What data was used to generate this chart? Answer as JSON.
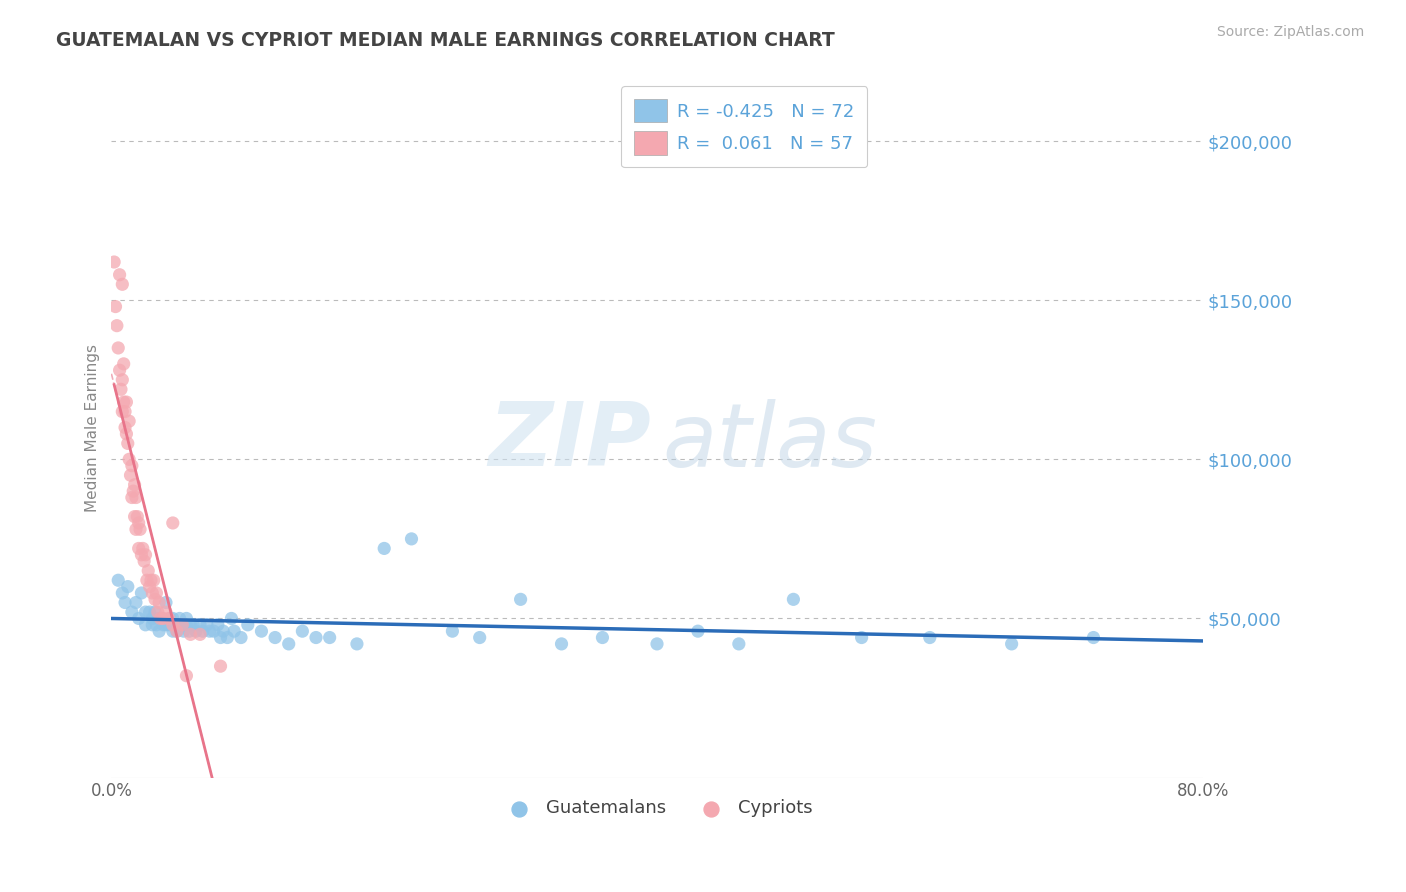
{
  "title": "GUATEMALAN VS CYPRIOT MEDIAN MALE EARNINGS CORRELATION CHART",
  "source": "Source: ZipAtlas.com",
  "ylabel": "Median Male Earnings",
  "xlim": [
    0.0,
    0.8
  ],
  "ylim": [
    0,
    220000
  ],
  "yticks": [
    0,
    50000,
    100000,
    150000,
    200000
  ],
  "ytick_labels": [
    "",
    "$50,000",
    "$100,000",
    "$150,000",
    "$200,000"
  ],
  "xtick_positions": [
    0.0,
    0.1,
    0.2,
    0.3,
    0.4,
    0.5,
    0.6,
    0.7,
    0.8
  ],
  "xtick_labels": [
    "0.0%",
    "",
    "",
    "",
    "",
    "",
    "",
    "",
    "80.0%"
  ],
  "blue_color": "#90c4e8",
  "pink_color": "#f4a8b0",
  "trend_blue_color": "#2b6cb8",
  "trend_pink_color": "#e8748a",
  "legend_label1": "R = -0.425   N = 72",
  "legend_label2": "R =  0.061   N = 57",
  "legend_label_bottom1": "Guatemalans",
  "legend_label_bottom2": "Cypriots",
  "watermark_zip": "ZIP",
  "watermark_atlas": "atlas",
  "title_color": "#444444",
  "axis_label_color": "#5ba3d9",
  "tick_label_color": "#5ba3d9",
  "bg_color": "#ffffff",
  "guatemalan_x": [
    0.005,
    0.008,
    0.01,
    0.012,
    0.015,
    0.018,
    0.02,
    0.022,
    0.025,
    0.025,
    0.028,
    0.03,
    0.03,
    0.032,
    0.033,
    0.035,
    0.035,
    0.037,
    0.038,
    0.04,
    0.04,
    0.042,
    0.043,
    0.045,
    0.045,
    0.047,
    0.048,
    0.05,
    0.05,
    0.052,
    0.053,
    0.055,
    0.055,
    0.057,
    0.058,
    0.06,
    0.062,
    0.065,
    0.067,
    0.07,
    0.072,
    0.075,
    0.078,
    0.08,
    0.082,
    0.085,
    0.088,
    0.09,
    0.095,
    0.1,
    0.11,
    0.12,
    0.13,
    0.14,
    0.15,
    0.16,
    0.18,
    0.2,
    0.22,
    0.25,
    0.27,
    0.3,
    0.33,
    0.36,
    0.4,
    0.43,
    0.46,
    0.5,
    0.55,
    0.6,
    0.66,
    0.72
  ],
  "guatemalan_y": [
    62000,
    58000,
    55000,
    60000,
    52000,
    55000,
    50000,
    58000,
    52000,
    48000,
    52000,
    50000,
    48000,
    52000,
    48000,
    50000,
    46000,
    50000,
    48000,
    48000,
    55000,
    48000,
    50000,
    50000,
    46000,
    48000,
    46000,
    50000,
    48000,
    48000,
    46000,
    50000,
    48000,
    46000,
    48000,
    48000,
    46000,
    48000,
    46000,
    48000,
    46000,
    46000,
    48000,
    44000,
    46000,
    44000,
    50000,
    46000,
    44000,
    48000,
    46000,
    44000,
    42000,
    46000,
    44000,
    44000,
    42000,
    72000,
    75000,
    46000,
    44000,
    56000,
    42000,
    44000,
    42000,
    46000,
    42000,
    56000,
    44000,
    44000,
    42000,
    44000
  ],
  "cypriot_x": [
    0.002,
    0.003,
    0.004,
    0.005,
    0.006,
    0.006,
    0.007,
    0.008,
    0.008,
    0.008,
    0.009,
    0.009,
    0.01,
    0.01,
    0.011,
    0.011,
    0.012,
    0.013,
    0.013,
    0.014,
    0.015,
    0.015,
    0.016,
    0.017,
    0.017,
    0.018,
    0.018,
    0.019,
    0.02,
    0.02,
    0.021,
    0.022,
    0.023,
    0.024,
    0.025,
    0.026,
    0.027,
    0.028,
    0.029,
    0.03,
    0.031,
    0.032,
    0.033,
    0.034,
    0.035,
    0.036,
    0.038,
    0.04,
    0.042,
    0.045,
    0.048,
    0.052,
    0.058,
    0.065,
    0.08,
    0.045,
    0.055
  ],
  "cypriot_y": [
    162000,
    148000,
    142000,
    135000,
    158000,
    128000,
    122000,
    155000,
    115000,
    125000,
    130000,
    118000,
    115000,
    110000,
    108000,
    118000,
    105000,
    100000,
    112000,
    95000,
    98000,
    88000,
    90000,
    92000,
    82000,
    88000,
    78000,
    82000,
    80000,
    72000,
    78000,
    70000,
    72000,
    68000,
    70000,
    62000,
    65000,
    60000,
    62000,
    58000,
    62000,
    56000,
    58000,
    52000,
    55000,
    50000,
    50000,
    52000,
    50000,
    48000,
    46000,
    48000,
    45000,
    45000,
    35000,
    80000,
    32000
  ]
}
